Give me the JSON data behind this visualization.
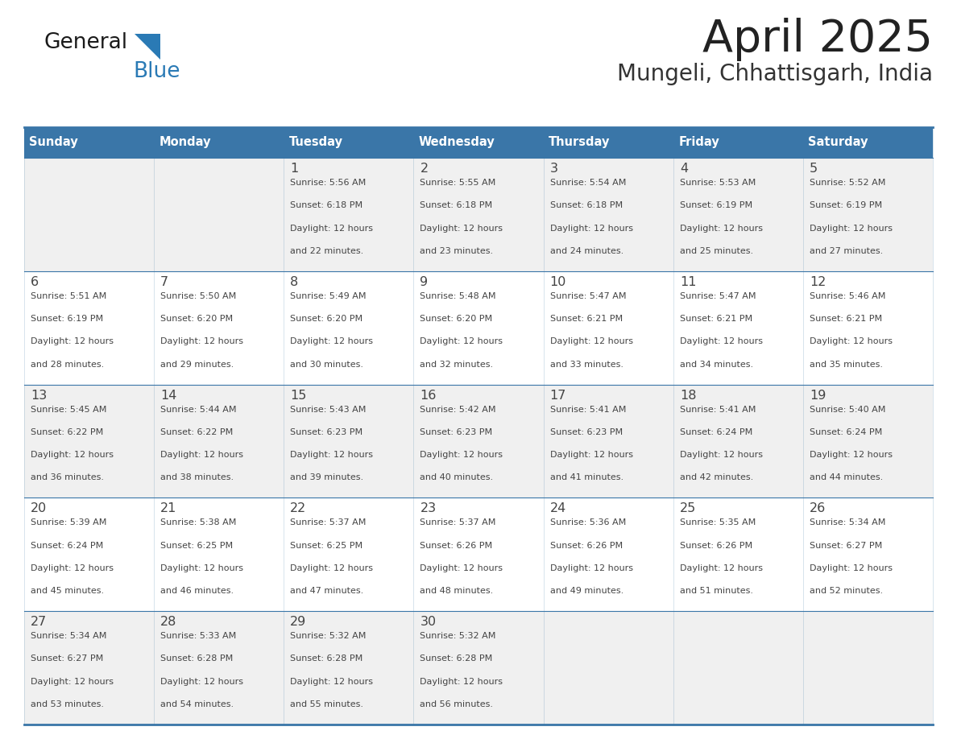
{
  "title": "April 2025",
  "subtitle": "Mungeli, Chhattisgarh, India",
  "header_bg": "#3a76a8",
  "header_text": "#ffffff",
  "row_bg_odd": "#f0f0f0",
  "row_bg_even": "#ffffff",
  "border_color": "#3a76a8",
  "day_names": [
    "Sunday",
    "Monday",
    "Tuesday",
    "Wednesday",
    "Thursday",
    "Friday",
    "Saturday"
  ],
  "title_color": "#222222",
  "subtitle_color": "#333333",
  "cell_text_color": "#444444",
  "logo_black": "#1a1a1a",
  "logo_blue": "#2a7ab5",
  "days": [
    {
      "day": 1,
      "col": 2,
      "row": 0,
      "sunrise": "5:56 AM",
      "sunset": "6:18 PM",
      "dl_mins": "22"
    },
    {
      "day": 2,
      "col": 3,
      "row": 0,
      "sunrise": "5:55 AM",
      "sunset": "6:18 PM",
      "dl_mins": "23"
    },
    {
      "day": 3,
      "col": 4,
      "row": 0,
      "sunrise": "5:54 AM",
      "sunset": "6:18 PM",
      "dl_mins": "24"
    },
    {
      "day": 4,
      "col": 5,
      "row": 0,
      "sunrise": "5:53 AM",
      "sunset": "6:19 PM",
      "dl_mins": "25"
    },
    {
      "day": 5,
      "col": 6,
      "row": 0,
      "sunrise": "5:52 AM",
      "sunset": "6:19 PM",
      "dl_mins": "27"
    },
    {
      "day": 6,
      "col": 0,
      "row": 1,
      "sunrise": "5:51 AM",
      "sunset": "6:19 PM",
      "dl_mins": "28"
    },
    {
      "day": 7,
      "col": 1,
      "row": 1,
      "sunrise": "5:50 AM",
      "sunset": "6:20 PM",
      "dl_mins": "29"
    },
    {
      "day": 8,
      "col": 2,
      "row": 1,
      "sunrise": "5:49 AM",
      "sunset": "6:20 PM",
      "dl_mins": "30"
    },
    {
      "day": 9,
      "col": 3,
      "row": 1,
      "sunrise": "5:48 AM",
      "sunset": "6:20 PM",
      "dl_mins": "32"
    },
    {
      "day": 10,
      "col": 4,
      "row": 1,
      "sunrise": "5:47 AM",
      "sunset": "6:21 PM",
      "dl_mins": "33"
    },
    {
      "day": 11,
      "col": 5,
      "row": 1,
      "sunrise": "5:47 AM",
      "sunset": "6:21 PM",
      "dl_mins": "34"
    },
    {
      "day": 12,
      "col": 6,
      "row": 1,
      "sunrise": "5:46 AM",
      "sunset": "6:21 PM",
      "dl_mins": "35"
    },
    {
      "day": 13,
      "col": 0,
      "row": 2,
      "sunrise": "5:45 AM",
      "sunset": "6:22 PM",
      "dl_mins": "36"
    },
    {
      "day": 14,
      "col": 1,
      "row": 2,
      "sunrise": "5:44 AM",
      "sunset": "6:22 PM",
      "dl_mins": "38"
    },
    {
      "day": 15,
      "col": 2,
      "row": 2,
      "sunrise": "5:43 AM",
      "sunset": "6:23 PM",
      "dl_mins": "39"
    },
    {
      "day": 16,
      "col": 3,
      "row": 2,
      "sunrise": "5:42 AM",
      "sunset": "6:23 PM",
      "dl_mins": "40"
    },
    {
      "day": 17,
      "col": 4,
      "row": 2,
      "sunrise": "5:41 AM",
      "sunset": "6:23 PM",
      "dl_mins": "41"
    },
    {
      "day": 18,
      "col": 5,
      "row": 2,
      "sunrise": "5:41 AM",
      "sunset": "6:24 PM",
      "dl_mins": "42"
    },
    {
      "day": 19,
      "col": 6,
      "row": 2,
      "sunrise": "5:40 AM",
      "sunset": "6:24 PM",
      "dl_mins": "44"
    },
    {
      "day": 20,
      "col": 0,
      "row": 3,
      "sunrise": "5:39 AM",
      "sunset": "6:24 PM",
      "dl_mins": "45"
    },
    {
      "day": 21,
      "col": 1,
      "row": 3,
      "sunrise": "5:38 AM",
      "sunset": "6:25 PM",
      "dl_mins": "46"
    },
    {
      "day": 22,
      "col": 2,
      "row": 3,
      "sunrise": "5:37 AM",
      "sunset": "6:25 PM",
      "dl_mins": "47"
    },
    {
      "day": 23,
      "col": 3,
      "row": 3,
      "sunrise": "5:37 AM",
      "sunset": "6:26 PM",
      "dl_mins": "48"
    },
    {
      "day": 24,
      "col": 4,
      "row": 3,
      "sunrise": "5:36 AM",
      "sunset": "6:26 PM",
      "dl_mins": "49"
    },
    {
      "day": 25,
      "col": 5,
      "row": 3,
      "sunrise": "5:35 AM",
      "sunset": "6:26 PM",
      "dl_mins": "51"
    },
    {
      "day": 26,
      "col": 6,
      "row": 3,
      "sunrise": "5:34 AM",
      "sunset": "6:27 PM",
      "dl_mins": "52"
    },
    {
      "day": 27,
      "col": 0,
      "row": 4,
      "sunrise": "5:34 AM",
      "sunset": "6:27 PM",
      "dl_mins": "53"
    },
    {
      "day": 28,
      "col": 1,
      "row": 4,
      "sunrise": "5:33 AM",
      "sunset": "6:28 PM",
      "dl_mins": "54"
    },
    {
      "day": 29,
      "col": 2,
      "row": 4,
      "sunrise": "5:32 AM",
      "sunset": "6:28 PM",
      "dl_mins": "55"
    },
    {
      "day": 30,
      "col": 3,
      "row": 4,
      "sunrise": "5:32 AM",
      "sunset": "6:28 PM",
      "dl_mins": "56"
    }
  ]
}
